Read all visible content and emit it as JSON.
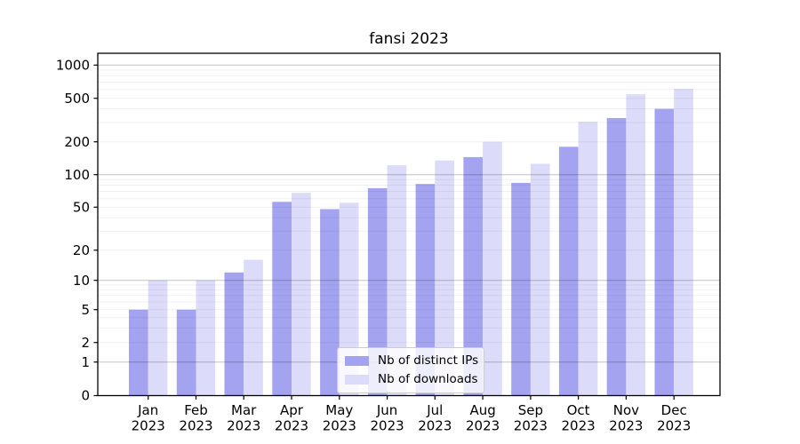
{
  "chart_data": {
    "type": "bar",
    "title": "fansi 2023",
    "x_categories": [
      "Jan 2023",
      "Feb 2023",
      "Mar 2023",
      "Apr 2023",
      "May 2023",
      "Jun 2023",
      "Jul 2023",
      "Aug 2023",
      "Sep 2023",
      "Oct 2023",
      "Nov 2023",
      "Dec 2023"
    ],
    "series": [
      {
        "name": "Nb of distinct IPs",
        "color": "#a3a3f0",
        "values": [
          5,
          5,
          12,
          56,
          48,
          75,
          82,
          145,
          84,
          180,
          330,
          400
        ]
      },
      {
        "name": "Nb of downloads",
        "color": "#dcdcfa",
        "values": [
          10,
          10,
          16,
          68,
          55,
          122,
          135,
          200,
          126,
          305,
          545,
          610
        ]
      }
    ],
    "y_axis": {
      "scale": "symlog",
      "tick_labels": [
        0,
        1,
        2,
        5,
        10,
        20,
        50,
        100,
        200,
        500,
        1000
      ],
      "ylim": [
        0,
        1000
      ]
    },
    "legend": {
      "position": "lower-center-inside"
    },
    "grid": {
      "major": true,
      "minor": true
    },
    "colors": {
      "axis": "#000000",
      "text": "#000000",
      "major_grid": "rgba(0,0,0,0.235)",
      "minor_grid": "rgba(0,0,0,0.06)",
      "background": "#ffffff"
    }
  }
}
